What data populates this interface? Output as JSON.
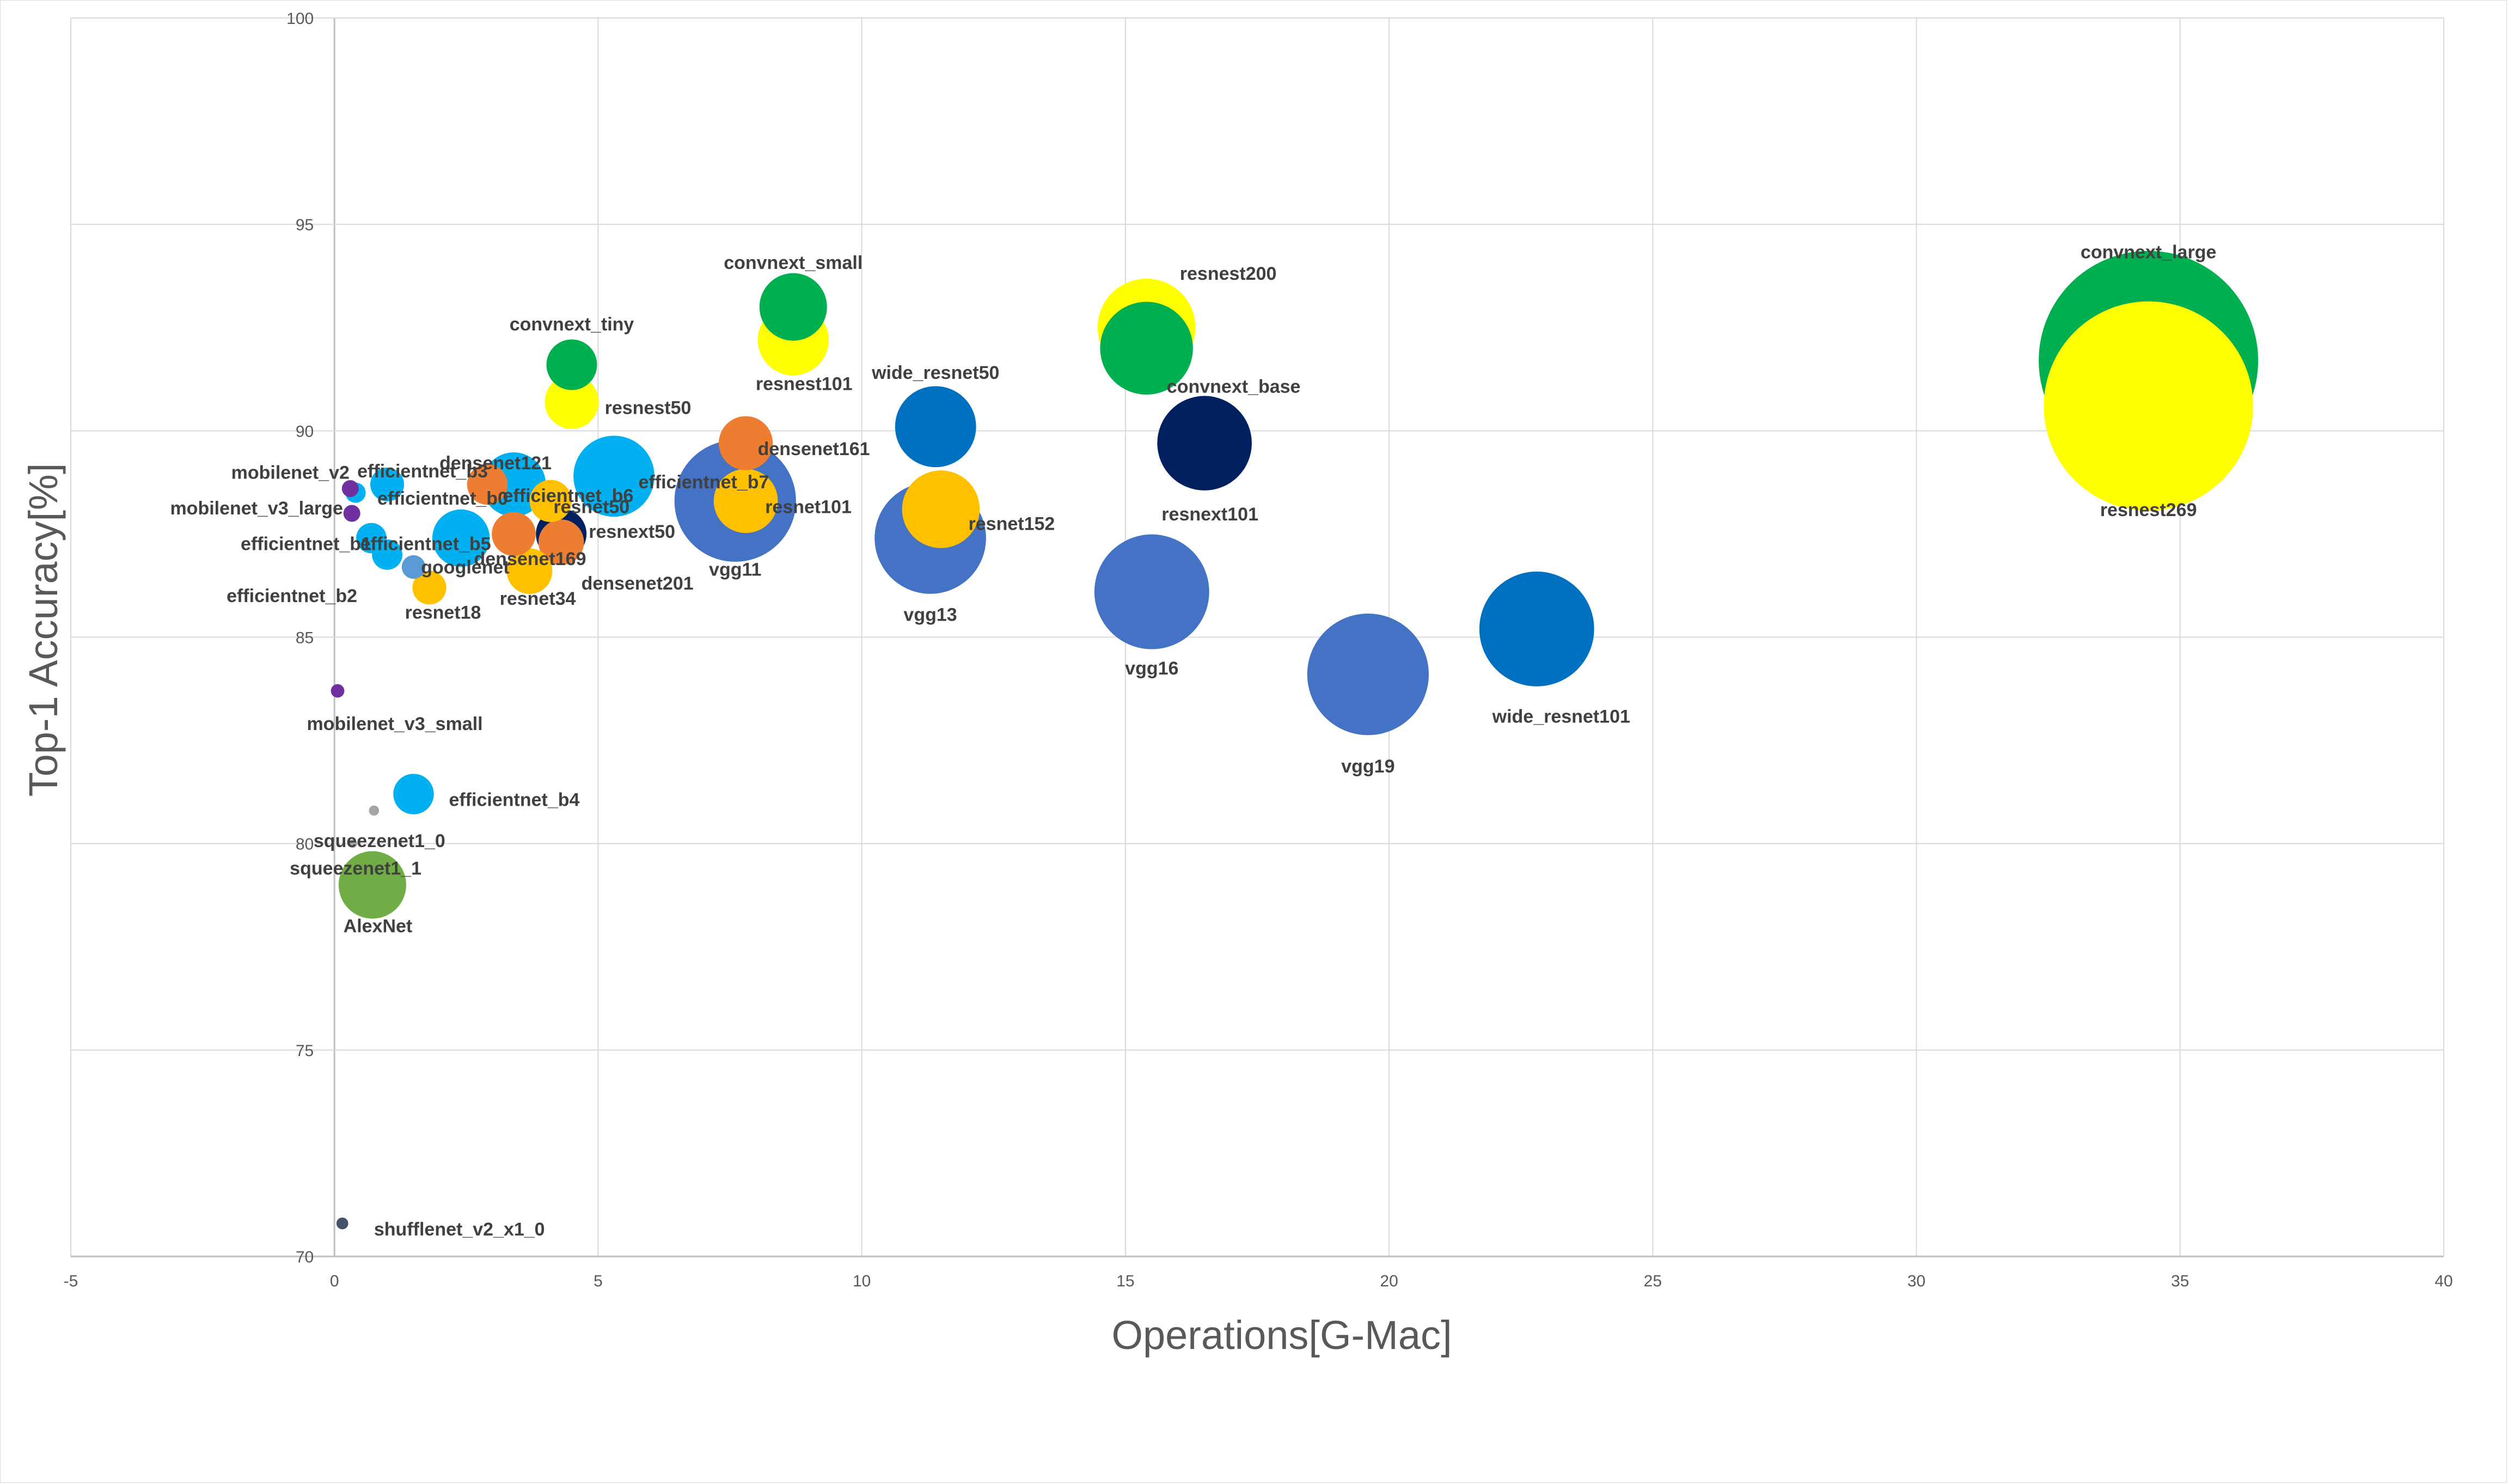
{
  "chart_data": {
    "type": "scatter",
    "bubble": true,
    "title": "",
    "xlabel": "Operations[G-Mac]",
    "ylabel": "Top-1 Accuracy[%]",
    "xlim": [
      -5,
      40
    ],
    "ylim": [
      70,
      100
    ],
    "xticks": [
      -5,
      0,
      5,
      10,
      15,
      20,
      25,
      30,
      35,
      40
    ],
    "yticks": [
      70,
      75,
      80,
      85,
      90,
      95,
      100
    ],
    "grid": true,
    "legend": "none",
    "colors": {
      "grid": "#d9d9d9",
      "axis": "#bfbfbf",
      "text": "#595959",
      "label": "#404040"
    },
    "points": [
      {
        "name": "convnext_large",
        "x": 34.4,
        "y": 91.7,
        "size": 130,
        "color": "#00b050",
        "label_pos": "above",
        "label_dy": -200
      },
      {
        "name": "resnest269",
        "x": 34.4,
        "y": 90.6,
        "size": 124,
        "color": "#ffff00",
        "label_pos": "below",
        "label_dy": 190
      },
      {
        "name": "resnest200",
        "x": 15.4,
        "y": 92.5,
        "size": 58,
        "color": "#ffff00",
        "label_pos": "above-right",
        "label_dx": 150,
        "label_dy": -100
      },
      {
        "name": "convnext_base",
        "x": 15.4,
        "y": 92.0,
        "size": 55,
        "color": "#00b050",
        "label_pos": "below-right",
        "label_dx": 160,
        "label_dy": 70
      },
      {
        "name": "resnext101",
        "x": 16.5,
        "y": 89.7,
        "size": 56,
        "color": "#002060",
        "label_pos": "below",
        "label_dx": 10,
        "label_dy": 130
      },
      {
        "name": "wide_resnet101",
        "x": 22.8,
        "y": 85.2,
        "size": 68,
        "color": "#0070c0",
        "label_pos": "below",
        "label_dx": 45,
        "label_dy": 160
      },
      {
        "name": "vgg19",
        "x": 19.6,
        "y": 84.1,
        "size": 72,
        "color": "#4472c4",
        "label_pos": "below",
        "label_dy": 168
      },
      {
        "name": "vgg16",
        "x": 15.5,
        "y": 86.1,
        "size": 68,
        "color": "#4472c4",
        "label_pos": "below",
        "label_dy": 140
      },
      {
        "name": "wide_resnet50",
        "x": 11.4,
        "y": 90.1,
        "size": 48,
        "color": "#0070c0",
        "label_pos": "above",
        "label_dy": -100
      },
      {
        "name": "vgg13",
        "x": 11.3,
        "y": 87.4,
        "size": 66,
        "color": "#4472c4",
        "label_pos": "below",
        "label_dy": 140
      },
      {
        "name": "resnet152",
        "x": 11.5,
        "y": 88.1,
        "size": 46,
        "color": "#ffc000",
        "label_pos": "right",
        "label_dx": 130,
        "label_dy": 26
      },
      {
        "name": "convnext_small",
        "x": 8.7,
        "y": 93.0,
        "size": 40,
        "color": "#00b050",
        "label_pos": "above",
        "label_dy": -82
      },
      {
        "name": "resnest101",
        "x": 8.7,
        "y": 92.2,
        "size": 42,
        "color": "#ffff00",
        "label_pos": "below",
        "label_dx": 20,
        "label_dy": 80
      },
      {
        "name": "vgg11",
        "x": 7.6,
        "y": 88.3,
        "size": 72,
        "color": "#4472c4",
        "label_pos": "below",
        "label_dy": 125
      },
      {
        "name": "densenet161",
        "x": 7.8,
        "y": 89.7,
        "size": 32,
        "color": "#ed7d31",
        "label_pos": "right",
        "label_dx": 125,
        "label_dy": 10
      },
      {
        "name": "resnet101",
        "x": 7.8,
        "y": 88.3,
        "size": 38,
        "color": "#ffc000",
        "label_pos": "right",
        "label_dx": 115,
        "label_dy": 10
      },
      {
        "name": "convnext_tiny",
        "x": 4.5,
        "y": 91.6,
        "size": 30,
        "color": "#00b050",
        "label_pos": "above",
        "label_dy": -75
      },
      {
        "name": "resnest50",
        "x": 4.5,
        "y": 90.7,
        "size": 32,
        "color": "#ffff00",
        "label_pos": "right",
        "label_dx": 140,
        "label_dy": 10
      },
      {
        "name": "efficientnet_b7",
        "x": 5.3,
        "y": 88.9,
        "size": 48,
        "color": "#00b0f0",
        "label_pos": "right",
        "label_dx": 165,
        "label_dy": 10
      },
      {
        "name": "resnext50",
        "x": 4.3,
        "y": 87.5,
        "size": 30,
        "color": "#002060",
        "label_pos": "right",
        "label_dx": 130,
        "label_dy": -5
      },
      {
        "name": "densenet201",
        "x": 4.3,
        "y": 87.3,
        "size": 27,
        "color": "#ed7d31",
        "label_pos": "below-right",
        "label_dx": 140,
        "label_dy": 75
      },
      {
        "name": "resnet50",
        "x": 4.1,
        "y": 88.3,
        "size": 25,
        "color": "#ffc000",
        "label_pos": "right",
        "label_dx": 75,
        "label_dy": 10
      },
      {
        "name": "densenet121",
        "x": 2.9,
        "y": 88.7,
        "size": 24,
        "color": "#ed7d31",
        "label_pos": "above",
        "label_dx": 15,
        "label_dy": -40
      },
      {
        "name": "efficientnet_b6",
        "x": 3.4,
        "y": 88.7,
        "size": 38,
        "color": "#00b0f0",
        "label_pos": "right",
        "label_dx": 100,
        "label_dy": 20
      },
      {
        "name": "densenet169",
        "x": 3.4,
        "y": 87.5,
        "size": 26,
        "color": "#ed7d31",
        "label_pos": "below",
        "label_dx": 30,
        "label_dy": 45
      },
      {
        "name": "efficientnet_b5",
        "x": 2.4,
        "y": 87.4,
        "size": 34,
        "color": "#00b0f0",
        "label_pos": "left",
        "label_dx": -65,
        "label_dy": 10
      },
      {
        "name": "resnet34",
        "x": 3.7,
        "y": 86.6,
        "size": 27,
        "color": "#ffc000",
        "label_pos": "below",
        "label_dx": 15,
        "label_dy": 50
      },
      {
        "name": "googlenet",
        "x": 1.5,
        "y": 86.7,
        "size": 14,
        "color": "#5b9bd5",
        "label_pos": "right",
        "label_dx": 95,
        "label_dy": 0
      },
      {
        "name": "resnet18",
        "x": 1.8,
        "y": 86.2,
        "size": 20,
        "color": "#ffc000",
        "label_pos": "below",
        "label_dx": 25,
        "label_dy": 45
      },
      {
        "name": "efficientnet_b3",
        "x": 1.0,
        "y": 88.7,
        "size": 20,
        "color": "#00b0f0",
        "label_pos": "right",
        "label_dx": 65,
        "label_dy": -25
      },
      {
        "name": "efficientnet_b0",
        "x": 0.4,
        "y": 88.5,
        "size": 12,
        "color": "#00b0f0",
        "label_pos": "right",
        "label_dx": 160,
        "label_dy": 10
      },
      {
        "name": "efficientnet_b1",
        "x": 0.7,
        "y": 87.4,
        "size": 18,
        "color": "#00b0f0",
        "label_pos": "left",
        "label_dx": -120,
        "label_dy": 10
      },
      {
        "name": "efficientnet_b2",
        "x": 1.0,
        "y": 87.0,
        "size": 18,
        "color": "#00b0f0",
        "label_pos": "below-left",
        "label_dx": -175,
        "label_dy": 75
      },
      {
        "name": "mobilenet_v2",
        "x": 0.3,
        "y": 88.6,
        "size": 10,
        "color": "#7030a0",
        "label_pos": "above-left",
        "label_dx": -110,
        "label_dy": -30
      },
      {
        "name": "mobilenet_v3_large",
        "x": 0.33,
        "y": 88.0,
        "size": 10,
        "color": "#7030a0",
        "label_pos": "left",
        "label_dx": -175,
        "label_dy": -10
      },
      {
        "name": "mobilenet_v3_small",
        "x": 0.06,
        "y": 83.7,
        "size": 8,
        "color": "#7030a0",
        "label_pos": "below",
        "label_dx": 105,
        "label_dy": 60
      },
      {
        "name": "efficientnet_b4",
        "x": 1.5,
        "y": 81.2,
        "size": 24,
        "color": "#00b0f0",
        "label_pos": "right",
        "label_dx": 185,
        "label_dy": 10
      },
      {
        "name": "squeezenet1_0",
        "x": 0.75,
        "y": 80.8,
        "size": 6,
        "color": "#a5a5a5",
        "label_pos": "below",
        "label_dx": 10,
        "label_dy": 55
      },
      {
        "name": "squeezenet1_1",
        "x": 0.35,
        "y": 80.0,
        "size": 5,
        "color": "#a5a5a5",
        "label_pos": "below",
        "label_dx": 5,
        "label_dy": 45
      },
      {
        "name": "AlexNet",
        "x": 0.72,
        "y": 79.0,
        "size": 40,
        "color": "#70ad47",
        "label_pos": "below",
        "label_dx": 10,
        "label_dy": 75
      },
      {
        "name": "shufflenet_v2_x1_0",
        "x": 0.15,
        "y": 70.8,
        "size": 7,
        "color": "#44546a",
        "label_pos": "right",
        "label_dx": 215,
        "label_dy": 10
      }
    ]
  }
}
